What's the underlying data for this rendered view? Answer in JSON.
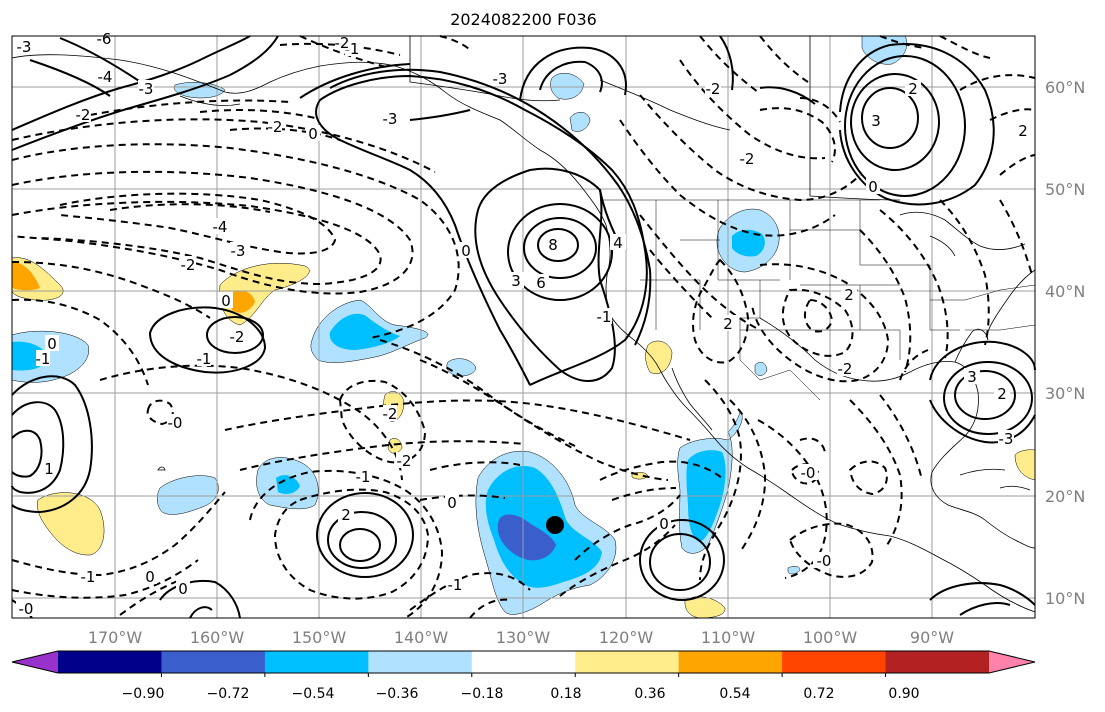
{
  "title": "2024082200 F036",
  "lat_labels": [
    "60°N",
    "50°N",
    "40°N",
    "30°N",
    "20°N",
    "10°N"
  ],
  "lon_labels": [
    "170°W",
    "160°W",
    "150°W",
    "140°W",
    "130°W",
    "120°W",
    "110°W",
    "100°W",
    "90°W"
  ],
  "contour_labels": [
    "-3",
    "-6",
    "-4",
    "-3",
    "-2",
    "-2",
    "-1",
    "-2",
    "0",
    "-3",
    "-3",
    "-2",
    "-4",
    "-3",
    "-2",
    "0",
    "-2",
    "-1",
    "-1",
    "0",
    "-0",
    "-2",
    "-1",
    "-0",
    "0",
    "-1",
    "-2",
    "-1",
    "0",
    "8",
    "6",
    "3",
    "0",
    "2",
    "3",
    "2",
    "0",
    "-2",
    "3",
    "-2",
    "2",
    "-3",
    "2",
    "4",
    "1",
    "0",
    "2",
    "0",
    "2",
    "-0",
    "-0",
    "-1"
  ],
  "colorbar": {
    "colors": [
      "#9932cc",
      "#00008b",
      "#3a5fcd",
      "#00bfff",
      "#b0e2ff",
      "#ffffff",
      "#ffec8b",
      "#ffa500",
      "#ff4500",
      "#b22222",
      "#ff82ab"
    ],
    "over_color": "#ff82ab",
    "under_color": "#9932cc",
    "tick_labels": [
      "−0.90",
      "−0.72",
      "−0.54",
      "−0.36",
      "−0.18",
      "0.18",
      "0.36",
      "0.54",
      "0.72",
      "0.90"
    ]
  },
  "marker_color": "#000000"
}
